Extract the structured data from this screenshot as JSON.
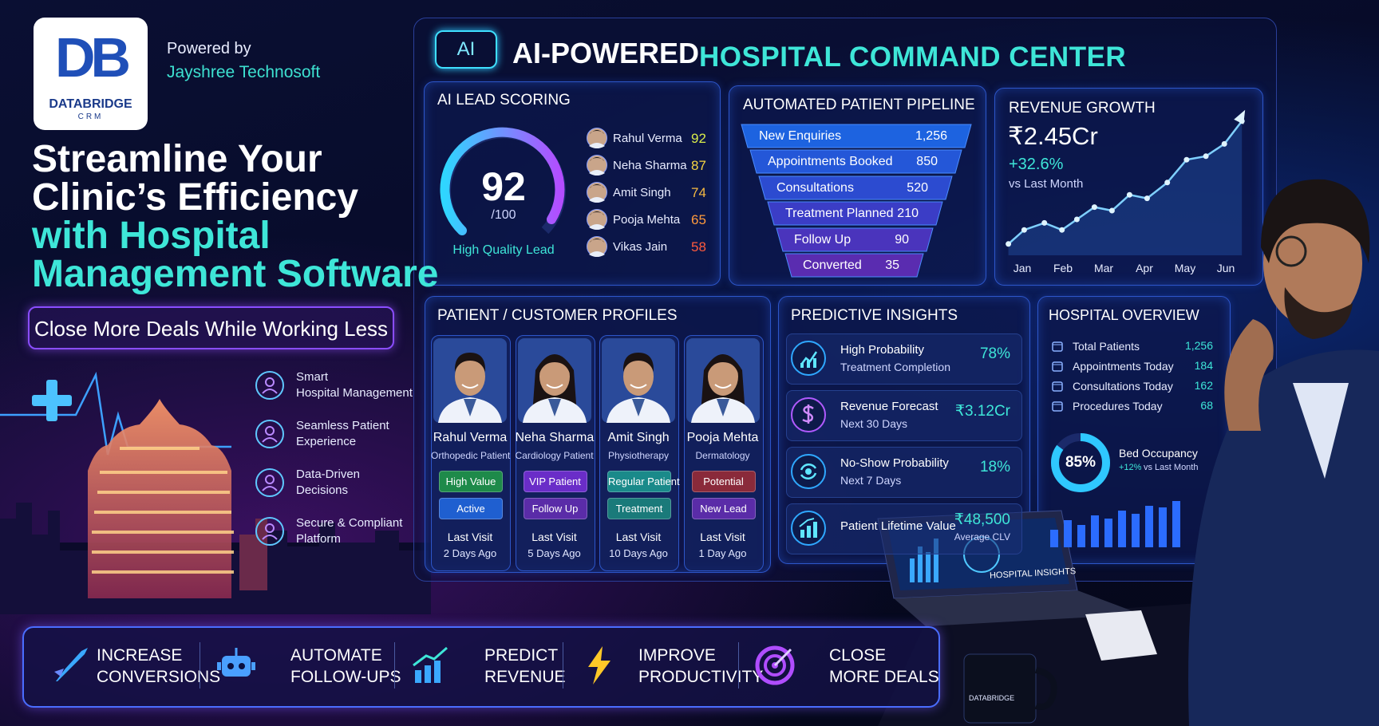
{
  "brand": {
    "logo_initials": "DB",
    "logo_name": "DATABRIDGE",
    "logo_sub": "CRM",
    "powered_by": "Powered by",
    "company": "Jayshree Technosoft"
  },
  "hero": {
    "lines": [
      "Streamline Your",
      "Clinic’s Efficiency",
      "with Hospital",
      "Management Software"
    ],
    "cta": "Close More Deals While Working Less"
  },
  "features": [
    {
      "lines": [
        "Smart",
        "Hospital Management"
      ]
    },
    {
      "lines": [
        "Seamless Patient",
        "Experience"
      ]
    },
    {
      "lines": [
        "Data-Driven",
        "Decisions"
      ]
    },
    {
      "lines": [
        "Secure & Compliant",
        "Platform"
      ]
    }
  ],
  "dashboard": {
    "badge": "AI",
    "title_1": "AI-POWERED",
    "title_2": "HOSPITAL COMMAND CENTER",
    "lead_scoring": {
      "title": "AI LEAD SCORING",
      "score": "92",
      "score_max": "/100",
      "score_label": "High Quality Lead",
      "leads": [
        {
          "name": "Rahul Verma",
          "score": "92"
        },
        {
          "name": "Neha Sharma",
          "score": "87"
        },
        {
          "name": "Amit Singh",
          "score": "74"
        },
        {
          "name": "Pooja Mehta",
          "score": "65"
        },
        {
          "name": "Vikas Jain",
          "score": "58"
        }
      ]
    },
    "pipeline": {
      "title": "AUTOMATED PATIENT PIPELINE",
      "stages": [
        {
          "name": "New Enquiries",
          "count": "1,256"
        },
        {
          "name": "Appointments Booked",
          "count": "850"
        },
        {
          "name": "Consultations",
          "count": "520"
        },
        {
          "name": "Treatment Planned",
          "count": "210"
        },
        {
          "name": "Follow Up",
          "count": "90"
        },
        {
          "name": "Converted",
          "count": "35"
        }
      ]
    },
    "revenue": {
      "title": "REVENUE GROWTH",
      "amount": "₹2.45Cr",
      "growth": "+32.6%",
      "comparison": "vs Last Month",
      "months": [
        "Jan",
        "Feb",
        "Mar",
        "Apr",
        "May",
        "Jun"
      ]
    },
    "profiles": {
      "title": "PATIENT / CUSTOMER PROFILES",
      "patients": [
        {
          "name": "Rahul Verma",
          "specialty": "Orthopedic Patient",
          "tags": [
            "High Value",
            "Active"
          ],
          "last_visit_label": "Last Visit",
          "last_visit": "2 Days Ago"
        },
        {
          "name": "Neha Sharma",
          "specialty": "Cardiology Patient",
          "tags": [
            "VIP Patient",
            "Follow Up"
          ],
          "last_visit_label": "Last Visit",
          "last_visit": "5 Days Ago"
        },
        {
          "name": "Amit Singh",
          "specialty": "Physiotherapy",
          "tags": [
            "Regular Patient",
            "Treatment"
          ],
          "last_visit_label": "Last Visit",
          "last_visit": "10 Days Ago"
        },
        {
          "name": "Pooja Mehta",
          "specialty": "Dermatology",
          "tags": [
            "Potential",
            "New Lead"
          ],
          "last_visit_label": "Last Visit",
          "last_visit": "1 Day Ago"
        }
      ]
    },
    "insights": {
      "title": "PREDICTIVE INSIGHTS",
      "items": [
        {
          "label": "High Probability",
          "sublabel": "Treatment Completion",
          "value": "78%"
        },
        {
          "label": "Revenue Forecast",
          "sublabel": "Next 30 Days",
          "value": "₹3.12Cr"
        },
        {
          "label": "No-Show Probability",
          "sublabel": "Next 7 Days",
          "value": "18%"
        },
        {
          "label": "Patient Lifetime Value",
          "value": "₹48,500",
          "value_note": "Average CLV"
        }
      ]
    },
    "overview": {
      "title": "HOSPITAL OVERVIEW",
      "stats": [
        {
          "label": "Total Patients",
          "value": "1,256"
        },
        {
          "label": "Appointments Today",
          "value": "184"
        },
        {
          "label": "Consultations Today",
          "value": "162"
        },
        {
          "label": "Procedures Today",
          "value": "68"
        }
      ],
      "occupancy": "85%",
      "occupancy_label": "Bed Occupancy",
      "occupancy_change": "+12%",
      "occupancy_change_label": "vs Last Month"
    }
  },
  "laptop": {
    "title": "HOSPITAL INSIGHTS"
  },
  "mug": {
    "brand": "DATABRIDGE"
  },
  "benefits": [
    {
      "lines": [
        "INCREASE",
        "CONVERSIONS"
      ]
    },
    {
      "lines": [
        "AUTOMATE",
        "FOLLOW-UPS"
      ]
    },
    {
      "lines": [
        "PREDICT",
        "REVENUE"
      ]
    },
    {
      "lines": [
        "IMPROVE",
        "PRODUCTIVITY"
      ]
    },
    {
      "lines": [
        "CLOSE",
        "MORE DEALS"
      ]
    }
  ]
}
